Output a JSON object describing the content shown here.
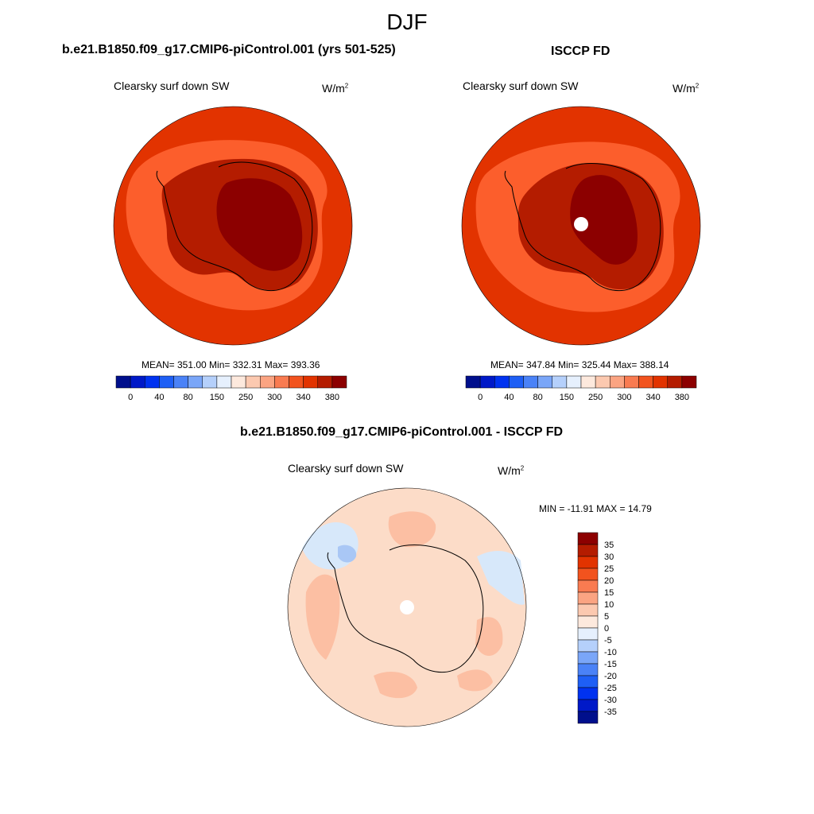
{
  "page": {
    "title": "DJF"
  },
  "colors": {
    "c380": "#8c0000",
    "c340": "#b41c00",
    "c300": "#e23300",
    "c250": "#fc5e2c",
    "c150": "#ffcaa8",
    "land_outline": "#000000",
    "diff_pos5": "#fcdcc8",
    "diff_pos10": "#fcbfa3",
    "diff_pos15": "#fa9f78",
    "diff_neg5": "#d7e8fa",
    "diff_neg10": "#a9c7f5",
    "diff_neg15": "#6f9ff0"
  },
  "chart_data": [
    {
      "type": "heatmap",
      "projection": "south polar stereographic",
      "panel_title": "b.e21.B1850.f09_g17.CMIP6-piControl.001 (yrs 501-525)",
      "variable": "Clearsky surf down SW",
      "units": "W/m",
      "units_exp": "2",
      "stats": "MEAN= 351.00  Min= 332.31  Max= 393.36",
      "mean": 351.0,
      "min": 332.31,
      "max": 393.36,
      "colorbar_levels": [
        "0",
        "40",
        "80",
        "150",
        "250",
        "300",
        "340",
        "380"
      ],
      "colorbar_colors": [
        "#000f8c",
        "#0019c8",
        "#0032f0",
        "#1e5ff5",
        "#4a82f7",
        "#7aa6f8",
        "#b5d0fb",
        "#e6f0fd",
        "#fde9dd",
        "#fcc9b0",
        "#fba482",
        "#f97b51",
        "#f2531e",
        "#e23300",
        "#b41c00",
        "#8c0000"
      ]
    },
    {
      "type": "heatmap",
      "projection": "south polar stereographic",
      "panel_title": "ISCCP FD",
      "variable": "Clearsky surf down SW",
      "units": "W/m",
      "units_exp": "2",
      "stats": "MEAN= 347.84  Min= 325.44  Max= 388.14",
      "mean": 347.84,
      "min": 325.44,
      "max": 388.14,
      "colorbar_levels": [
        "0",
        "40",
        "80",
        "150",
        "250",
        "300",
        "340",
        "380"
      ],
      "colorbar_colors": [
        "#000f8c",
        "#0019c8",
        "#0032f0",
        "#1e5ff5",
        "#4a82f7",
        "#7aa6f8",
        "#b5d0fb",
        "#e6f0fd",
        "#fde9dd",
        "#fcc9b0",
        "#fba482",
        "#f97b51",
        "#f2531e",
        "#e23300",
        "#b41c00",
        "#8c0000"
      ]
    },
    {
      "type": "heatmap",
      "projection": "south polar stereographic",
      "panel_title": "b.e21.B1850.f09_g17.CMIP6-piControl.001 - ISCCP FD",
      "variable": "Clearsky surf down SW",
      "units": "W/m",
      "units_exp": "2",
      "stats": "MIN = -11.91 MAX =  14.79",
      "min": -11.91,
      "max": 14.79,
      "colorbar_levels": [
        "35",
        "30",
        "25",
        "20",
        "15",
        "10",
        "5",
        "0",
        "-5",
        "-10",
        "-15",
        "-20",
        "-25",
        "-30",
        "-35"
      ],
      "colorbar_colors": [
        "#8c0000",
        "#b41c00",
        "#e23300",
        "#f2531e",
        "#f97b51",
        "#fba482",
        "#fcc9b0",
        "#fde9dd",
        "#e6f0fd",
        "#b5d0fb",
        "#7aa6f8",
        "#4a82f7",
        "#1e5ff5",
        "#0032f0",
        "#0019c8",
        "#000f8c"
      ]
    }
  ]
}
